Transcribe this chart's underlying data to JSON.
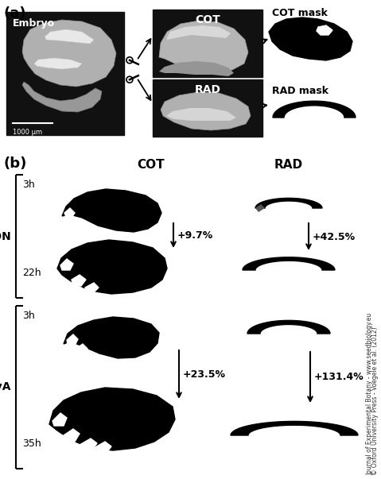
{
  "title_a": "(a)",
  "title_b": "(b)",
  "embryo_label": "Embryo",
  "scale_label": "1000 μm",
  "cot_label": "COT",
  "rad_label": "RAD",
  "cot_mask_label": "COT mask",
  "rad_mask_label": "RAD mask",
  "col_cot": "COT",
  "col_rad": "RAD",
  "con_label": "CON",
  "mya_label": "MyA",
  "con_3h": "3h",
  "con_22h": "22h",
  "mya_3h": "3h",
  "mya_35h": "35h",
  "con_cot_pct": "+9.7%",
  "con_rad_pct": "+42.5%",
  "mya_cot_pct": "+23.5%",
  "mya_rad_pct": "+131.4%",
  "copyright_line1": "© Oxford University Press - Voegele et al. (2012)",
  "copyright_line2": "Journal of Experimental Botany - www.seedbiology.eu",
  "bg_color": "#ffffff",
  "black": "#000000"
}
